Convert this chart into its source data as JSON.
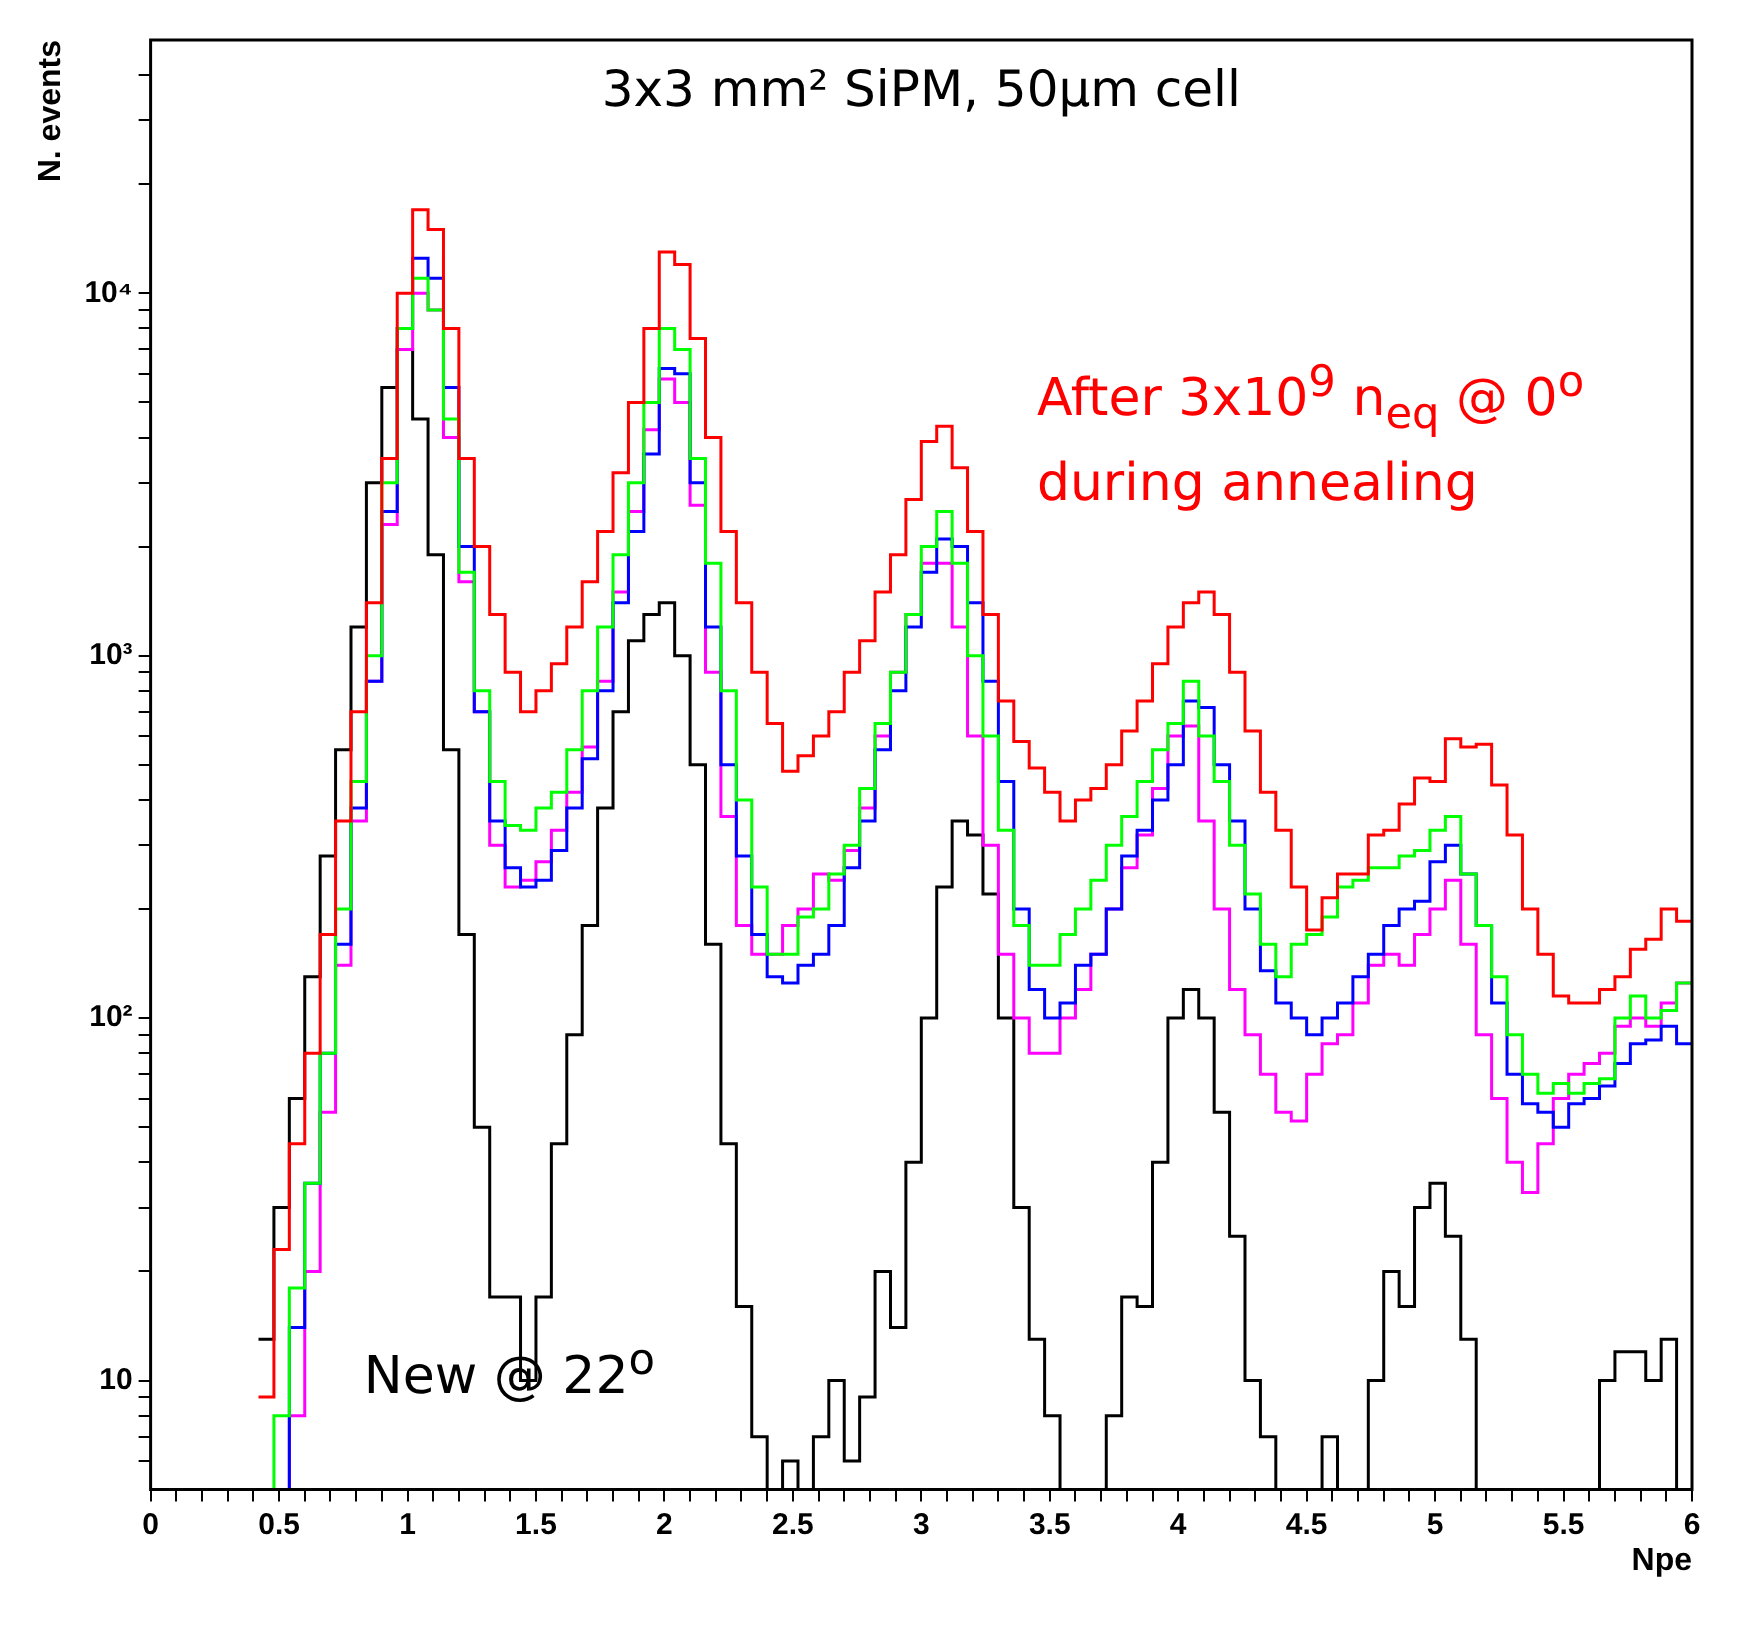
{
  "chart_data": {
    "type": "histogram",
    "title": "3x3 mm² SiPM, 50μm cell",
    "xlabel": "Npe",
    "ylabel": "N. events",
    "log": "y",
    "grid": false,
    "legend": false,
    "bins": [
      0.42,
      0.48,
      0.54,
      0.6,
      0.66,
      0.72,
      0.78,
      0.84,
      0.9,
      0.96,
      1.02,
      1.08,
      1.14,
      1.2,
      1.26,
      1.32,
      1.38,
      1.44,
      1.5,
      1.56,
      1.62,
      1.68,
      1.74,
      1.8,
      1.86,
      1.92,
      1.98,
      2.04,
      2.1,
      2.16,
      2.22,
      2.28,
      2.34,
      2.4,
      2.46,
      2.52,
      2.58,
      2.64,
      2.7,
      2.76,
      2.82,
      2.88,
      2.94,
      3,
      3.06,
      3.12,
      3.18,
      3.24,
      3.3,
      3.36,
      3.42,
      3.48,
      3.54,
      3.6,
      3.66,
      3.72,
      3.78,
      3.84,
      3.9,
      3.96,
      4.02,
      4.08,
      4.14,
      4.2,
      4.26,
      4.32,
      4.38,
      4.44,
      4.5,
      4.56,
      4.62,
      4.68,
      4.74,
      4.8,
      4.86,
      4.92,
      4.98,
      5.04,
      5.1,
      5.16,
      5.22,
      5.28,
      5.34,
      5.4,
      5.46,
      5.52,
      5.58,
      5.64,
      5.7,
      5.76,
      5.82,
      5.88,
      5.94,
      6
    ],
    "xlim": [
      0,
      6
    ],
    "xticks": [
      0,
      {
        "value": 0.1,
        "label": null
      },
      {
        "value": 0.2,
        "label": null
      },
      {
        "value": 0.3,
        "label": null
      },
      {
        "value": 0.4,
        "label": null
      },
      0.5,
      {
        "value": 0.6,
        "label": null
      },
      {
        "value": 0.7,
        "label": null
      },
      {
        "value": 0.8,
        "label": null
      },
      {
        "value": 0.9,
        "label": null
      },
      1,
      {
        "value": 1.1,
        "label": null
      },
      {
        "value": 1.2,
        "label": null
      },
      {
        "value": 1.3,
        "label": null
      },
      {
        "value": 1.4,
        "label": null
      },
      1.5,
      {
        "value": 1.6,
        "label": null
      },
      {
        "value": 1.7,
        "label": null
      },
      {
        "value": 1.8,
        "label": null
      },
      {
        "value": 1.9,
        "label": null
      },
      2,
      {
        "value": 2.1,
        "label": null
      },
      {
        "value": 2.2,
        "label": null
      },
      {
        "value": 2.3,
        "label": null
      },
      {
        "value": 2.4,
        "label": null
      },
      2.5,
      {
        "value": 2.6,
        "label": null
      },
      {
        "value": 2.7,
        "label": null
      },
      {
        "value": 2.8,
        "label": null
      },
      {
        "value": 2.9,
        "label": null
      },
      3,
      {
        "value": 3.1,
        "label": null
      },
      {
        "value": 3.2,
        "label": null
      },
      {
        "value": 3.3,
        "label": null
      },
      {
        "value": 3.4,
        "label": null
      },
      3.5,
      {
        "value": 3.6,
        "label": null
      },
      {
        "value": 3.7,
        "label": null
      },
      {
        "value": 3.8,
        "label": null
      },
      {
        "value": 3.9,
        "label": null
      },
      4,
      {
        "value": 4.1,
        "label": null
      },
      {
        "value": 4.2,
        "label": null
      },
      {
        "value": 4.3,
        "label": null
      },
      {
        "value": 4.4,
        "label": null
      },
      4.5,
      {
        "value": 4.6,
        "label": null
      },
      {
        "value": 4.7,
        "label": null
      },
      {
        "value": 4.8,
        "label": null
      },
      {
        "value": 4.9,
        "label": null
      },
      5,
      {
        "value": 5.1,
        "label": null
      },
      {
        "value": 5.2,
        "label": null
      },
      {
        "value": 5.3,
        "label": null
      },
      {
        "value": 5.4,
        "label": null
      },
      5.5,
      {
        "value": 5.6,
        "label": null
      },
      {
        "value": 5.7,
        "label": null
      },
      {
        "value": 5.8,
        "label": null
      },
      {
        "value": 5.9,
        "label": null
      },
      6
    ],
    "ylim": [
      5,
      50000
    ],
    "yticks": [
      {
        "value": 6,
        "label": null
      },
      {
        "value": 7,
        "label": null
      },
      {
        "value": 8,
        "label": null
      },
      {
        "value": 9,
        "label": null
      },
      10,
      {
        "value": 20,
        "label": null
      },
      {
        "value": 30,
        "label": null
      },
      {
        "value": 40,
        "label": null
      },
      {
        "value": 50,
        "label": null
      },
      {
        "value": 60,
        "label": null
      },
      {
        "value": 70,
        "label": null
      },
      {
        "value": 80,
        "label": null
      },
      {
        "value": 90,
        "label": null
      },
      {
        "value": 100,
        "label": "10²"
      },
      {
        "value": 200,
        "label": null
      },
      {
        "value": 300,
        "label": null
      },
      {
        "value": 400,
        "label": null
      },
      {
        "value": 500,
        "label": null
      },
      {
        "value": 600,
        "label": null
      },
      {
        "value": 700,
        "label": null
      },
      {
        "value": 800,
        "label": null
      },
      {
        "value": 900,
        "label": null
      },
      {
        "value": 1000,
        "label": "10³"
      },
      {
        "value": 2000,
        "label": null
      },
      {
        "value": 3000,
        "label": null
      },
      {
        "value": 4000,
        "label": null
      },
      {
        "value": 5000,
        "label": null
      },
      {
        "value": 6000,
        "label": null
      },
      {
        "value": 7000,
        "label": null
      },
      {
        "value": 8000,
        "label": null
      },
      {
        "value": 9000,
        "label": null
      },
      {
        "value": 10000,
        "label": "10⁴"
      },
      {
        "value": 20000,
        "label": null
      },
      {
        "value": 30000,
        "label": null
      },
      {
        "value": 40000,
        "label": null
      }
    ],
    "series": [
      {
        "name": "After 3x10$^{9}$ n$_{eq}$ @ 0$^{o}$ during annealing",
        "color": "#ff0000",
        "values": [
          9,
          23,
          45,
          80,
          170,
          350,
          700,
          1400,
          3500,
          10000,
          17000,
          15000,
          8000,
          3500,
          2000,
          1300,
          900,
          700,
          800,
          950,
          1200,
          1600,
          2200,
          3200,
          5000,
          8000,
          13000,
          12000,
          7500,
          4000,
          2200,
          1400,
          900,
          650,
          480,
          530,
          600,
          700,
          900,
          1100,
          1500,
          1900,
          2700,
          3900,
          4300,
          3300,
          2200,
          1300,
          750,
          580,
          490,
          420,
          350,
          400,
          430,
          500,
          620,
          750,
          950,
          1200,
          1400,
          1500,
          1300,
          900,
          620,
          420,
          330,
          230,
          175,
          215,
          250,
          250,
          320,
          330,
          390,
          460,
          450,
          590,
          560,
          570,
          440,
          320,
          200,
          150,
          115,
          110,
          110,
          120,
          130,
          155,
          165,
          200,
          185
        ]
      },
      {
        "color": "#00ff00",
        "values": [
          null,
          8,
          18,
          35,
          80,
          200,
          450,
          1000,
          3000,
          8000,
          11000,
          9000,
          4500,
          1700,
          800,
          450,
          340,
          330,
          380,
          420,
          550,
          800,
          1200,
          1900,
          3000,
          5000,
          8000,
          7000,
          3500,
          1800,
          800,
          400,
          230,
          150,
          150,
          190,
          200,
          250,
          300,
          430,
          650,
          900,
          1300,
          2000,
          2500,
          1800,
          1000,
          600,
          330,
          180,
          140,
          140,
          170,
          200,
          240,
          300,
          360,
          450,
          550,
          650,
          850,
          600,
          450,
          300,
          220,
          160,
          130,
          160,
          170,
          190,
          230,
          240,
          260,
          260,
          280,
          290,
          330,
          360,
          250,
          180,
          130,
          90,
          70,
          62,
          66,
          62,
          66,
          68,
          100,
          115,
          100,
          105,
          125
        ]
      },
      {
        "color": "#0000ff",
        "values": [
          null,
          null,
          14,
          35,
          80,
          160,
          380,
          850,
          2500,
          8000,
          12500,
          11000,
          5500,
          2000,
          700,
          350,
          260,
          230,
          240,
          290,
          380,
          520,
          800,
          1400,
          2200,
          3600,
          6200,
          6000,
          3000,
          1200,
          500,
          280,
          170,
          130,
          125,
          140,
          150,
          180,
          260,
          350,
          550,
          800,
          1200,
          1700,
          2100,
          2000,
          1400,
          850,
          450,
          200,
          120,
          100,
          110,
          140,
          150,
          200,
          280,
          330,
          400,
          500,
          750,
          720,
          500,
          350,
          200,
          135,
          110,
          100,
          90,
          100,
          110,
          130,
          150,
          180,
          200,
          210,
          270,
          300,
          250,
          180,
          110,
          70,
          58,
          55,
          50,
          58,
          60,
          65,
          75,
          85,
          87,
          95,
          85
        ]
      },
      {
        "color": "#ff00ff",
        "values": [
          null,
          null,
          8,
          20,
          55,
          140,
          350,
          850,
          2300,
          7000,
          10000,
          9000,
          4000,
          1600,
          700,
          300,
          230,
          240,
          270,
          330,
          420,
          560,
          850,
          1500,
          2500,
          4200,
          5800,
          5000,
          2600,
          900,
          360,
          180,
          150,
          150,
          180,
          200,
          250,
          240,
          290,
          380,
          600,
          900,
          1300,
          1800,
          1800,
          1200,
          600,
          300,
          150,
          100,
          80,
          80,
          100,
          120,
          150,
          200,
          260,
          320,
          430,
          600,
          640,
          350,
          200,
          120,
          90,
          70,
          55,
          52,
          70,
          85,
          90,
          110,
          140,
          150,
          140,
          170,
          200,
          240,
          160,
          90,
          60,
          40,
          33,
          45,
          60,
          70,
          75,
          80,
          95,
          100,
          95,
          110,
          125
        ]
      },
      {
        "name": "New @ 22$^{o}$",
        "color": "#000000",
        "values": [
          13,
          30,
          60,
          130,
          280,
          550,
          1200,
          3000,
          5500,
          7000,
          4500,
          1900,
          550,
          170,
          50,
          17,
          17,
          10,
          17,
          45,
          90,
          180,
          380,
          700,
          1100,
          1300,
          1400,
          1000,
          500,
          160,
          45,
          16,
          7,
          null,
          6,
          null,
          7,
          10,
          6,
          9,
          20,
          14,
          40,
          100,
          230,
          350,
          320,
          220,
          100,
          30,
          13,
          8,
          null,
          null,
          null,
          8,
          17,
          16,
          40,
          100,
          120,
          100,
          55,
          25,
          10,
          7,
          null,
          null,
          null,
          7,
          null,
          null,
          10,
          20,
          16,
          30,
          35,
          25,
          13,
          null,
          null,
          null,
          null,
          null,
          null,
          null,
          null,
          10,
          12,
          12,
          10,
          13,
          null
        ]
      }
    ]
  }
}
